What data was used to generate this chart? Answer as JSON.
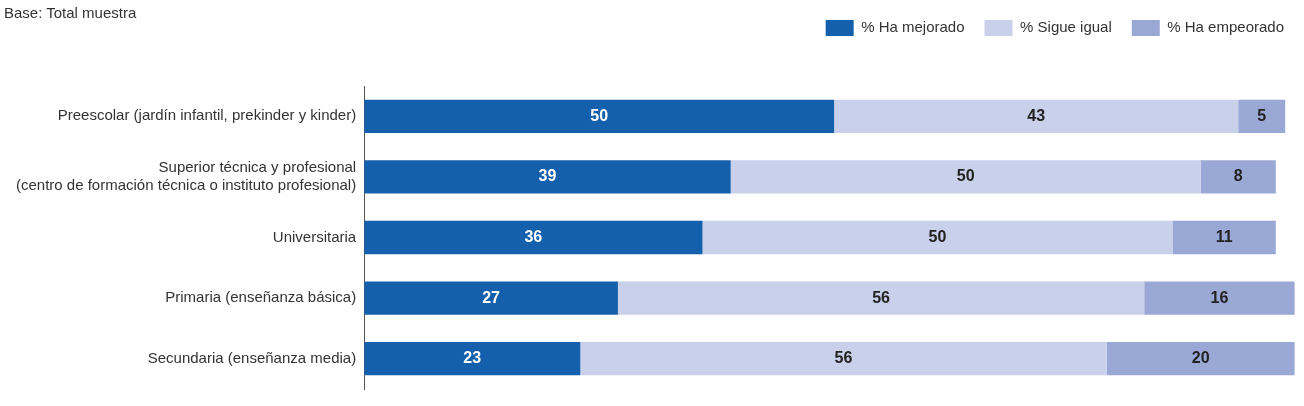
{
  "chart_data": {
    "type": "bar",
    "orientation": "horizontal",
    "stacked": true,
    "annotations": [
      "Base: Total muestra"
    ],
    "categories": [
      "Preescolar (jardín infantil, prekinder y kinder)",
      "Superior técnica y profesional\n(centro de formación técnica o instituto profesional)",
      "Universitaria",
      "Primaria (enseñanza básica)",
      "Secundaria (enseñanza media)"
    ],
    "series": [
      {
        "name": "% Ha mejorado",
        "color": "#1560ad",
        "values": [
          50,
          39,
          36,
          27,
          23
        ]
      },
      {
        "name": "% Sigue igual",
        "color": "#c8d0ea",
        "values": [
          43,
          50,
          50,
          56,
          56
        ]
      },
      {
        "name": "% Ha empeorado",
        "color": "#9aa8d6",
        "values": [
          5,
          8,
          11,
          16,
          20
        ]
      }
    ],
    "data_labels": true,
    "legend": "top right",
    "tick_labels": "y"
  }
}
